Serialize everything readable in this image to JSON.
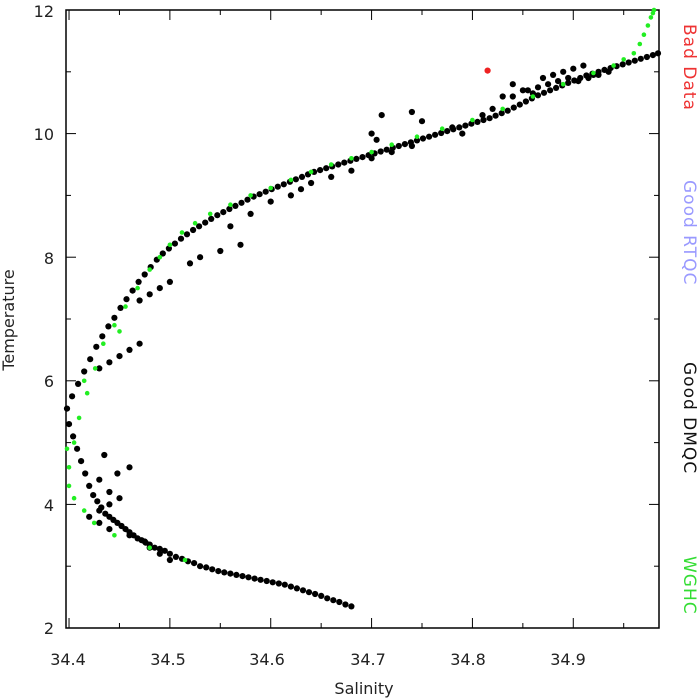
{
  "chart_data": {
    "type": "scatter",
    "title": "",
    "xlabel": "Salinity",
    "ylabel": "Temperature",
    "xlim": [
      34.397,
      34.985
    ],
    "ylim": [
      2.0,
      12.0
    ],
    "x_ticks": [
      "34.4",
      "34.5",
      "34.6",
      "34.7",
      "34.8",
      "34.9"
    ],
    "y_ticks": [
      "2",
      "4",
      "6",
      "8",
      "10",
      "12"
    ],
    "grid": false,
    "legend_position": "right",
    "legend": [
      {
        "label": "Bad Data",
        "color": "#ee3333"
      },
      {
        "label": "Good RTQC",
        "color": "#9999ff"
      },
      {
        "label": "Good DMQC",
        "color": "#111111"
      },
      {
        "label": "WGHC",
        "color": "#33dd33"
      }
    ],
    "series": [
      {
        "name": "Good DMQC",
        "color": "#000000",
        "x": [
          34.68,
          34.674,
          34.668,
          34.662,
          34.656,
          34.65,
          34.644,
          34.638,
          34.632,
          34.626,
          34.62,
          34.614,
          34.608,
          34.602,
          34.596,
          34.59,
          34.584,
          34.578,
          34.572,
          34.566,
          34.56,
          34.554,
          34.548,
          34.542,
          34.536,
          34.53,
          34.524,
          34.518,
          34.512,
          34.506,
          34.5,
          34.495,
          34.49,
          34.485,
          34.48,
          34.476,
          34.472,
          34.468,
          34.464,
          34.46,
          34.456,
          34.452,
          34.448,
          34.444,
          34.44,
          34.436,
          34.432,
          34.428,
          34.424,
          34.42,
          34.416,
          34.412,
          34.408,
          34.404,
          34.4,
          34.398,
          34.403,
          34.409,
          34.415,
          34.421,
          34.427,
          34.433,
          34.439,
          34.445,
          34.451,
          34.457,
          34.463,
          34.469,
          34.475,
          34.481,
          34.487,
          34.493,
          34.499,
          34.505,
          34.511,
          34.517,
          34.523,
          34.529,
          34.535,
          34.541,
          34.547,
          34.553,
          34.559,
          34.565,
          34.571,
          34.577,
          34.583,
          34.589,
          34.595,
          34.601,
          34.607,
          34.613,
          34.619,
          34.625,
          34.631,
          34.637,
          34.643,
          34.649,
          34.655,
          34.661,
          34.667,
          34.673,
          34.679,
          34.685,
          34.691,
          34.697,
          34.703,
          34.709,
          34.715,
          34.721,
          34.727,
          34.733,
          34.739,
          34.745,
          34.751,
          34.757,
          34.763,
          34.769,
          34.775,
          34.781,
          34.787,
          34.793,
          34.799,
          34.805,
          34.811,
          34.817,
          34.823,
          34.829,
          34.835,
          34.841,
          34.847,
          34.853,
          34.859,
          34.865,
          34.871,
          34.877,
          34.883,
          34.889,
          34.895,
          34.901,
          34.907,
          34.913,
          34.919,
          34.925,
          34.931,
          34.937,
          34.943,
          34.949,
          34.955,
          34.961,
          34.967,
          34.973,
          34.979,
          34.984,
          34.45,
          34.44,
          34.43,
          34.42,
          34.43,
          34.44,
          34.46,
          34.48,
          34.49,
          34.44,
          34.43,
          34.46,
          34.435,
          34.448,
          34.475,
          34.5,
          34.47,
          34.46,
          34.45,
          34.44,
          34.43,
          34.52,
          34.53,
          34.55,
          34.57,
          34.5,
          34.49,
          34.48,
          34.47,
          34.56,
          34.58,
          34.6,
          34.62,
          34.63,
          34.64,
          34.66,
          34.68,
          34.7,
          34.72,
          34.74,
          34.705,
          34.7,
          34.71,
          34.74,
          34.75,
          34.78,
          34.79,
          34.81,
          34.82,
          34.83,
          34.84,
          34.85,
          34.86,
          34.87,
          34.88,
          34.89,
          34.9,
          34.91,
          34.92,
          34.895,
          34.885,
          34.875,
          34.865,
          34.855,
          34.84,
          34.905,
          34.915,
          34.925,
          34.935
        ],
        "y": [
          2.35,
          2.38,
          2.42,
          2.45,
          2.48,
          2.52,
          2.55,
          2.58,
          2.61,
          2.64,
          2.67,
          2.7,
          2.72,
          2.74,
          2.76,
          2.78,
          2.8,
          2.82,
          2.84,
          2.86,
          2.88,
          2.9,
          2.92,
          2.95,
          2.98,
          3.0,
          3.05,
          3.08,
          3.12,
          3.15,
          3.2,
          3.25,
          3.28,
          3.3,
          3.35,
          3.38,
          3.42,
          3.45,
          3.5,
          3.55,
          3.6,
          3.65,
          3.7,
          3.75,
          3.8,
          3.85,
          3.95,
          4.05,
          4.15,
          4.3,
          4.5,
          4.7,
          4.9,
          5.1,
          5.3,
          5.55,
          5.75,
          5.95,
          6.15,
          6.35,
          6.55,
          6.72,
          6.88,
          7.02,
          7.18,
          7.32,
          7.46,
          7.6,
          7.72,
          7.84,
          7.96,
          8.06,
          8.14,
          8.22,
          8.3,
          8.37,
          8.44,
          8.5,
          8.56,
          8.62,
          8.68,
          8.73,
          8.78,
          8.83,
          8.88,
          8.93,
          8.98,
          9.02,
          9.06,
          9.1,
          9.14,
          9.18,
          9.22,
          9.26,
          9.3,
          9.34,
          9.38,
          9.41,
          9.44,
          9.47,
          9.5,
          9.53,
          9.56,
          9.59,
          9.62,
          9.65,
          9.68,
          9.71,
          9.74,
          9.77,
          9.8,
          9.83,
          9.86,
          9.89,
          9.92,
          9.95,
          9.98,
          10.01,
          10.04,
          10.07,
          10.1,
          10.13,
          10.16,
          10.19,
          10.22,
          10.25,
          10.29,
          10.33,
          10.37,
          10.42,
          10.47,
          10.52,
          10.57,
          10.62,
          10.66,
          10.7,
          10.74,
          10.78,
          10.82,
          10.86,
          10.9,
          10.94,
          10.97,
          11.0,
          11.03,
          11.06,
          11.09,
          11.12,
          11.15,
          11.18,
          11.21,
          11.24,
          11.27,
          11.3,
          4.1,
          4.0,
          3.9,
          3.8,
          3.7,
          3.6,
          3.5,
          3.3,
          3.2,
          4.2,
          4.4,
          4.6,
          4.8,
          4.5,
          3.4,
          3.1,
          6.6,
          6.5,
          6.4,
          6.3,
          6.2,
          7.9,
          8.0,
          8.1,
          8.2,
          7.6,
          7.5,
          7.4,
          7.3,
          8.5,
          8.7,
          8.9,
          9.0,
          9.1,
          9.2,
          9.3,
          9.4,
          9.6,
          9.7,
          9.8,
          9.9,
          10.0,
          10.3,
          10.35,
          10.2,
          10.1,
          10.0,
          10.3,
          10.4,
          10.6,
          10.8,
          10.7,
          10.65,
          10.9,
          10.95,
          11.0,
          11.05,
          11.1,
          10.95,
          10.9,
          10.85,
          10.8,
          10.75,
          10.7,
          10.6,
          10.85,
          10.9,
          10.95,
          11.0
        ]
      },
      {
        "name": "WGHC",
        "color": "#22ee22",
        "x": [
          34.4,
          34.405,
          34.41,
          34.418,
          34.426,
          34.434,
          34.445,
          34.456,
          34.468,
          34.48,
          34.49,
          34.5,
          34.512,
          34.525,
          34.54,
          34.56,
          34.58,
          34.6,
          34.62,
          34.64,
          34.66,
          34.68,
          34.7,
          34.72,
          34.745,
          34.77,
          34.8,
          34.83,
          34.86,
          34.89,
          34.92,
          34.94,
          34.95,
          34.96,
          34.966,
          34.97,
          34.974,
          34.977,
          34.979,
          34.98,
          34.398,
          34.4,
          34.405,
          34.415,
          34.425,
          34.445,
          34.48,
          34.515,
          34.45,
          34.415
        ],
        "y": [
          4.6,
          5.0,
          5.4,
          5.8,
          6.2,
          6.6,
          6.9,
          7.2,
          7.5,
          7.8,
          8.0,
          8.2,
          8.4,
          8.55,
          8.7,
          8.85,
          9.0,
          9.12,
          9.25,
          9.38,
          9.5,
          9.6,
          9.7,
          9.82,
          9.95,
          10.08,
          10.22,
          10.4,
          10.6,
          10.8,
          10.98,
          11.1,
          11.2,
          11.3,
          11.45,
          11.6,
          11.75,
          11.88,
          11.95,
          12.0,
          4.9,
          4.3,
          4.1,
          3.9,
          3.7,
          3.5,
          3.3,
          3.1,
          6.8,
          6.0
        ]
      },
      {
        "name": "Bad Data",
        "color": "#ee2222",
        "x": [
          34.815
        ],
        "y": [
          11.02
        ]
      }
    ]
  }
}
